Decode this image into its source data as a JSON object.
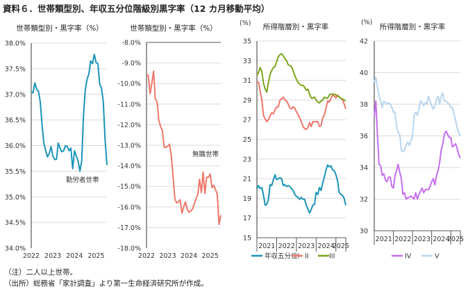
{
  "title": "資料６．世帯類型別、年収五分位階級別黒字率（12 カ月移動平均）",
  "notes": [
    "（注）二人以上世帯。",
    "（出所）総務省「家計調査」より第一生命経済研究所が作成。"
  ],
  "chart_data": [
    {
      "type": "line",
      "title": "世帯類型別・黒字率（%）",
      "ylim": [
        34.0,
        38.0
      ],
      "ytick_labels": [
        "34.0%",
        "34.5%",
        "35.0%",
        "35.5%",
        "36.0%",
        "36.5%",
        "37.0%",
        "37.5%",
        "38.0%"
      ],
      "xtick_labels": [
        "2022",
        "2023",
        "2024",
        "2025"
      ],
      "x_start": "2022-01",
      "x_step": "month",
      "grid": true,
      "annotation": "勤労者世帯",
      "series": [
        {
          "name": "勤労者世帯",
          "color": "#1a93b8",
          "values": [
            37.05,
            37.03,
            37.22,
            37.1,
            37.06,
            36.85,
            36.4,
            36.05,
            35.9,
            35.78,
            35.85,
            35.98,
            35.8,
            35.73,
            35.73,
            36.05,
            35.95,
            35.88,
            35.9,
            36.0,
            35.98,
            35.9,
            35.95,
            35.55,
            35.9,
            35.8,
            35.7,
            35.5,
            35.7,
            36.6,
            37.1,
            37.3,
            37.4,
            37.65,
            37.6,
            37.78,
            37.62,
            37.6,
            37.2,
            37.12,
            36.85,
            36.1,
            35.62
          ]
        }
      ]
    },
    {
      "type": "line",
      "title": "世帯類型別・黒字率（%）",
      "ylim": [
        -18.0,
        -8.0
      ],
      "ytick_labels": [
        "-18.0%",
        "-17.0%",
        "-16.0%",
        "-15.0%",
        "-14.0%",
        "-13.0%",
        "-12.0%",
        "-11.0%",
        "-10.0%",
        "-9.0%",
        "-8.0%"
      ],
      "xtick_labels": [
        "2022",
        "2023",
        "2024",
        "2025"
      ],
      "x_start": "2022-01",
      "x_step": "month",
      "grid": true,
      "annotation": "無職世帯",
      "series": [
        {
          "name": "無職世帯",
          "color": "#f0766a",
          "values": [
            -9.55,
            -9.6,
            -10.5,
            -10.0,
            -9.4,
            -10.75,
            -10.9,
            -11.8,
            -12.1,
            -12.3,
            -13.1,
            -13.1,
            -13.05,
            -12.95,
            -13.5,
            -14.5,
            -15.6,
            -15.8,
            -15.75,
            -15.65,
            -16.3,
            -16.0,
            -15.75,
            -16.1,
            -16.25,
            -16.2,
            -16.1,
            -15.85,
            -15.6,
            -15.4,
            -14.65,
            -15.3,
            -14.3,
            -15.35,
            -14.55,
            -14.55,
            -14.4,
            -15.05,
            -14.95,
            -15.15,
            -15.4,
            -16.85,
            -16.4
          ]
        }
      ]
    },
    {
      "type": "line",
      "title": "所得階層別・黒字率",
      "yunit": "(%)",
      "ylim": [
        15,
        35
      ],
      "ytick_labels": [
        "15",
        "17",
        "19",
        "21",
        "23",
        "25",
        "27",
        "29",
        "31",
        "33",
        "35"
      ],
      "xtick_labels": [
        "2021",
        "2022",
        "2023",
        "2024",
        "2025"
      ],
      "x_start": "2021-01",
      "x_step": "month",
      "grid": true,
      "legend": "bottom",
      "series": [
        {
          "name": "年収五分位I",
          "color": "#1a93b8",
          "values": [
            20.0,
            20.3,
            20.0,
            20.1,
            19.3,
            18.3,
            18.4,
            18.9,
            20.4,
            20.3,
            20.9,
            21.4,
            20.9,
            21.0,
            21.1,
            21.0,
            20.3,
            20.4,
            20.2,
            20.3,
            20.2,
            20.0,
            19.8,
            19.4,
            19.2,
            19.1,
            18.9,
            19.1,
            18.9,
            18.9,
            18.3,
            17.9,
            17.5,
            17.9,
            18.3,
            18.4,
            19.6,
            19.4,
            20.1,
            19.8,
            20.6,
            21.2,
            21.9,
            22.4,
            22.2,
            22.3,
            21.9,
            21.8,
            21.4,
            20.8,
            19.6,
            19.4,
            19.3,
            19.0,
            18.3
          ]
        },
        {
          "name": "II",
          "color": "#f0766a",
          "values": [
            30.8,
            30.8,
            29.9,
            29.0,
            27.4,
            27.1,
            26.8,
            27.0,
            27.4,
            27.7,
            27.6,
            28.0,
            28.3,
            28.3,
            29.0,
            29.1,
            29.3,
            29.0,
            28.9,
            28.6,
            28.2,
            28.1,
            28.3,
            28.2,
            27.8,
            27.5,
            27.2,
            26.8,
            26.3,
            26.1,
            26.0,
            26.2,
            26.7,
            26.3,
            26.8,
            26.8,
            26.8,
            26.8,
            26.3,
            26.4,
            27.2,
            27.5,
            28.2,
            28.9,
            28.8,
            29.2,
            29.5,
            29.4,
            29.2,
            29.5,
            29.3,
            29.2,
            29.0,
            28.6,
            28.1
          ]
        },
        {
          "name": "III",
          "color": "#7aa51a",
          "values": [
            31.5,
            31.8,
            32.3,
            31.9,
            30.7,
            30.1,
            29.8,
            30.8,
            31.6,
            32.0,
            32.3,
            32.4,
            32.9,
            33.4,
            33.6,
            33.7,
            33.5,
            33.2,
            33.0,
            32.6,
            32.5,
            32.4,
            32.0,
            31.5,
            31.1,
            30.8,
            30.6,
            30.5,
            30.5,
            30.3,
            30.0,
            30.1,
            29.6,
            29.2,
            29.2,
            29.3,
            29.0,
            28.8,
            28.7,
            28.9,
            29.0,
            29.3,
            29.2,
            29.2,
            29.5,
            29.6,
            29.6,
            29.6,
            29.5,
            29.4,
            29.3,
            29.2,
            29.1,
            29.0,
            28.9
          ]
        }
      ]
    },
    {
      "type": "line",
      "title": "所得階層別・黒字率",
      "yunit": "(%)",
      "ylim": [
        30,
        42
      ],
      "ytick_labels": [
        "30",
        "32",
        "34",
        "36",
        "38",
        "40",
        "42"
      ],
      "xtick_labels": [
        "2021",
        "2022",
        "2023",
        "2024",
        "2025"
      ],
      "x_start": "2021-01",
      "x_step": "month",
      "grid": true,
      "legend": "bottom",
      "series": [
        {
          "name": "IV",
          "color": "#c46df0",
          "values": [
            37.2,
            38.2,
            36.0,
            34.2,
            34.1,
            33.5,
            33.6,
            33.2,
            33.1,
            33.4,
            33.4,
            32.8,
            32.7,
            33.5,
            33.8,
            34.2,
            33.7,
            33.3,
            32.3,
            32.4,
            32.0,
            32.1,
            32.1,
            32.2,
            32.1,
            32.0,
            32.4,
            32.0,
            32.3,
            32.5,
            32.7,
            32.4,
            32.6,
            32.6,
            32.6,
            32.8,
            33.1,
            33.3,
            32.9,
            33.5,
            33.8,
            34.3,
            35.1,
            35.5,
            36.1,
            36.3,
            36.1,
            35.9,
            35.9,
            35.3,
            35.4,
            35.5,
            35.2,
            34.8,
            34.6
          ]
        },
        {
          "name": "V",
          "color": "#b8d4ee",
          "values": [
            39.4,
            39.7,
            39.1,
            38.5,
            38.2,
            37.8,
            38.2,
            38.1,
            38.0,
            38.1,
            38.0,
            37.8,
            37.5,
            37.5,
            36.6,
            36.2,
            36.1,
            35.1,
            35.0,
            35.1,
            35.4,
            35.6,
            35.4,
            35.7,
            36.0,
            37.3,
            37.5,
            37.3,
            37.7,
            38.2,
            38.1,
            37.9,
            38.1,
            38.0,
            38.5,
            38.2,
            37.9,
            37.7,
            37.9,
            38.3,
            38.5,
            38.0,
            38.5,
            38.7,
            38.2,
            38.2,
            38.1,
            38.0,
            37.8,
            37.8,
            37.4,
            37.0,
            36.5,
            36.2,
            36.0
          ]
        }
      ]
    }
  ]
}
